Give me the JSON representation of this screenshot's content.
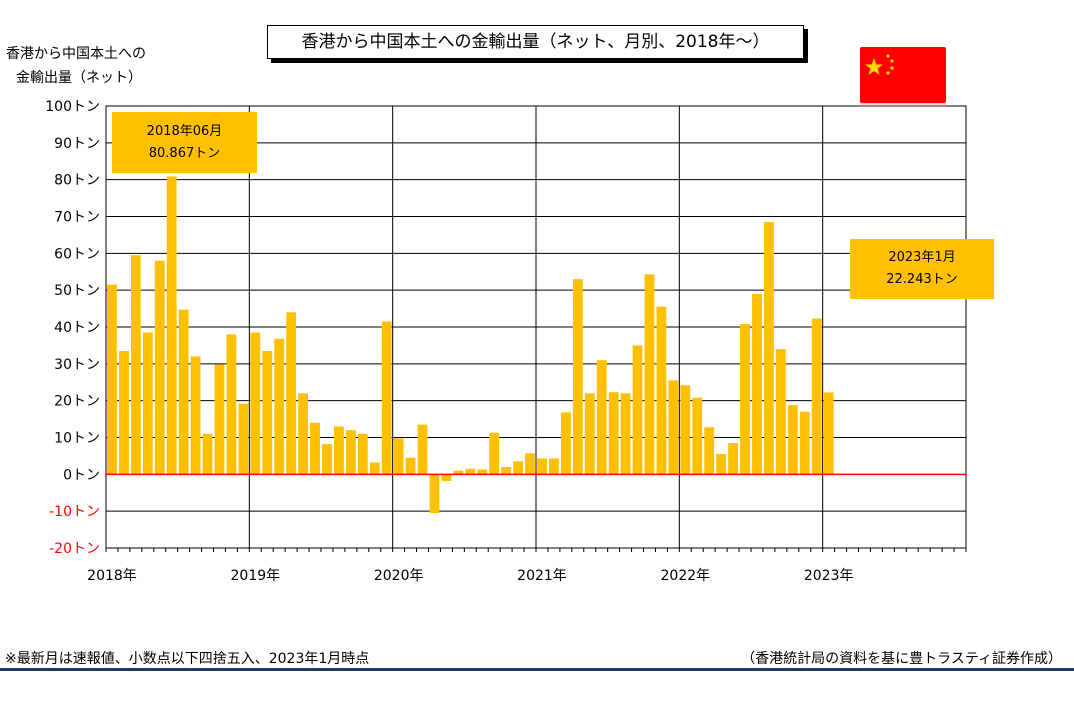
{
  "header": {
    "title": "香港から中国本土への金輸出量（ネット、月別、2018年～）",
    "ylabel_line1": "香港から中国本土への",
    "ylabel_line2": "金輸出量（ネット）"
  },
  "callouts": {
    "first_date": "2018年06月",
    "first_value": "80.867トン",
    "latest_date": "2023年1月",
    "latest_value": "22.243トン"
  },
  "footer": {
    "note": "※最新月は速報値、小数点以下四捨五入、2023年1月時点",
    "source": "（香港統計局の資料を基に豊トラスティ証券作成）"
  },
  "flag": {
    "country_icon": "china-flag-icon"
  },
  "colors": {
    "bar": "#ffc000",
    "zero_line": "#ff0000",
    "negative_tick": "#ff0000",
    "grid": "#000000"
  },
  "chart_data": {
    "type": "bar",
    "title": "香港から中国本土への金輸出量（ネット、月別、2018年～）",
    "ylabel": "香港から中国本土への金輸出量（ネット）",
    "unit": "トン",
    "ylim": [
      -20,
      100
    ],
    "ytick_values": [
      100,
      90,
      80,
      70,
      60,
      50,
      40,
      30,
      20,
      10,
      0,
      -10,
      -20
    ],
    "ytick_labels": [
      "100トン",
      "90トン",
      "80トン",
      "70トン",
      "60トン",
      "50トン",
      "40トン",
      "30トン",
      "20トン",
      "10トン",
      "0トン",
      "-10トン",
      "-20トン"
    ],
    "xtick_labels": [
      "2018年",
      "2019年",
      "2020年",
      "2021年",
      "2022年",
      "2023年"
    ],
    "total_months": 72,
    "grid": true,
    "categories": [
      "2018-01",
      "2018-02",
      "2018-03",
      "2018-04",
      "2018-05",
      "2018-06",
      "2018-07",
      "2018-08",
      "2018-09",
      "2018-10",
      "2018-11",
      "2018-12",
      "2019-01",
      "2019-02",
      "2019-03",
      "2019-04",
      "2019-05",
      "2019-06",
      "2019-07",
      "2019-08",
      "2019-09",
      "2019-10",
      "2019-11",
      "2019-12",
      "2020-01",
      "2020-02",
      "2020-03",
      "2020-04",
      "2020-05",
      "2020-06",
      "2020-07",
      "2020-08",
      "2020-09",
      "2020-10",
      "2020-11",
      "2020-12",
      "2021-01",
      "2021-02",
      "2021-03",
      "2021-04",
      "2021-05",
      "2021-06",
      "2021-07",
      "2021-08",
      "2021-09",
      "2021-10",
      "2021-11",
      "2021-12",
      "2022-01",
      "2022-02",
      "2022-03",
      "2022-04",
      "2022-05",
      "2022-06",
      "2022-07",
      "2022-08",
      "2022-09",
      "2022-10",
      "2022-11",
      "2022-12",
      "2023-01"
    ],
    "values": [
      51.5,
      33.5,
      59.5,
      38.5,
      58.0,
      80.867,
      44.7,
      32.0,
      11.0,
      29.8,
      38.0,
      19.2,
      38.5,
      33.5,
      36.8,
      44.0,
      22.0,
      14.0,
      8.2,
      13.0,
      12.0,
      11.0,
      3.2,
      41.5,
      9.8,
      4.5,
      13.5,
      -10.5,
      -1.8,
      1.0,
      1.5,
      1.3,
      11.3,
      2.0,
      3.5,
      5.7,
      4.3,
      4.3,
      16.8,
      53.0,
      22.0,
      31.0,
      22.3,
      22.0,
      35.0,
      54.3,
      45.5,
      25.5,
      24.2,
      20.8,
      12.8,
      5.5,
      8.5,
      40.8,
      49.0,
      68.5,
      34.0,
      18.8,
      17.0,
      42.3,
      22.243
    ]
  }
}
